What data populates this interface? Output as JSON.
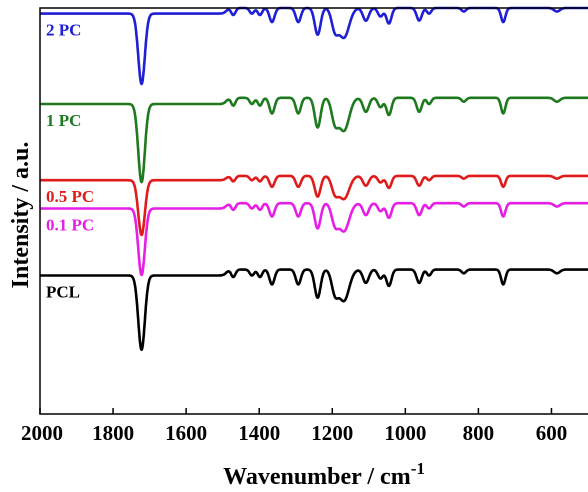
{
  "chart_data": {
    "type": "line",
    "title": "",
    "xlabel": "Wavenumber / cm",
    "xlabel_superscript": "-1",
    "ylabel": "Intensity / a.u.",
    "xlim": [
      2000,
      500
    ],
    "x_reversed": true,
    "y_ticks_shown": false,
    "grid": false,
    "x_ticks": [
      "2000",
      "1800",
      "1600",
      "1400",
      "1200",
      "1000",
      "800",
      "600"
    ],
    "x_tick_values": [
      2000,
      1800,
      1600,
      1400,
      1200,
      1000,
      800,
      600
    ],
    "series": [
      {
        "name": "2 PC",
        "color": "#1f1fd6",
        "offset": 4.2,
        "scale": 0.9
      },
      {
        "name": "1 PC",
        "color": "#1f7a1f",
        "offset": 3.05,
        "scale": 1.0
      },
      {
        "name": "0.5 PC",
        "color": "#e01b1b",
        "offset": 2.05,
        "scale": 0.7
      },
      {
        "name": "0.1 PC",
        "color": "#e61ee6",
        "offset": 1.7,
        "scale": 0.85
      },
      {
        "name": "PCL",
        "color": "#000000",
        "offset": 0.85,
        "scale": 0.95
      }
    ],
    "spectrum_model": {
      "baseline_drop_above_1480": 0.08,
      "peaks": [
        {
          "center": 1722,
          "depth": 1.0,
          "width": 9
        },
        {
          "center": 1471,
          "depth": 0.1,
          "width": 6
        },
        {
          "center": 1420,
          "depth": 0.08,
          "width": 6
        },
        {
          "center": 1398,
          "depth": 0.1,
          "width": 6
        },
        {
          "center": 1365,
          "depth": 0.2,
          "width": 7
        },
        {
          "center": 1293,
          "depth": 0.2,
          "width": 7
        },
        {
          "center": 1240,
          "depth": 0.38,
          "width": 8
        },
        {
          "center": 1193,
          "depth": 0.28,
          "width": 9
        },
        {
          "center": 1168,
          "depth": 0.42,
          "width": 14
        },
        {
          "center": 1108,
          "depth": 0.18,
          "width": 8
        },
        {
          "center": 1068,
          "depth": 0.12,
          "width": 7
        },
        {
          "center": 1045,
          "depth": 0.22,
          "width": 7
        },
        {
          "center": 962,
          "depth": 0.18,
          "width": 7
        },
        {
          "center": 935,
          "depth": 0.08,
          "width": 6
        },
        {
          "center": 840,
          "depth": 0.05,
          "width": 6
        },
        {
          "center": 732,
          "depth": 0.2,
          "width": 6
        },
        {
          "center": 585,
          "depth": 0.05,
          "width": 8
        }
      ]
    }
  }
}
